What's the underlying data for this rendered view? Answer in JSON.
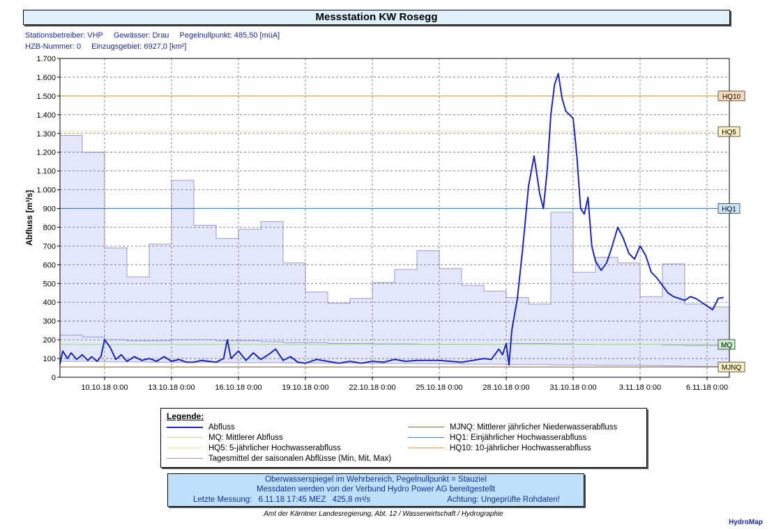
{
  "title": "Messstation KW Rosegg",
  "meta": {
    "line1": [
      "Stationsbetreiber: VHP",
      "Gewässer: Drau",
      "Pegelnullpunkt: 485,50 [müA]"
    ],
    "line2": [
      "HZB-Nummer: 0",
      "Einzugsgebiet: 6927,0 [km²]"
    ]
  },
  "legend": {
    "title": "Legende:",
    "left": [
      {
        "label": "Abfluss",
        "color": "#1a26b8",
        "width": 2
      },
      {
        "label": "MQ: Mittlerer Abfluss",
        "color": "#a8e08a",
        "width": 1
      },
      {
        "label": "HQ5: 5-jährlicher Hochwasserabfluss",
        "color": "#f2e6a0",
        "width": 1
      },
      {
        "label": "Tagesmittel der saisonalen Abflüsse (Min, Mit, Max)",
        "color": "#9a9ad0",
        "width": 1
      }
    ],
    "right": [
      {
        "label": "MJNQ: Mittlerer jährlicher Niederwasserabfluss",
        "color": "#8a6a40",
        "width": 1
      },
      {
        "label": "HQ1: Einjährlicher Hochwasserabfluss",
        "color": "#3a8ac8",
        "width": 1
      },
      {
        "label": "HQ10: 10-jährlicher Hochwasserabfluss",
        "color": "#e0a040",
        "width": 1
      }
    ]
  },
  "info": {
    "line1": "Oberwasserspiegel im Wehrbereich, Pegelnullpunkt = Stauziel",
    "line2": "Messdaten werden von der Verbund Hydro Power AG bereitgestellt",
    "last_label": "Letzte Messung:",
    "last_time": "6.11.18 17:45 MEZ",
    "last_value": "425,8 m³/s",
    "warning": "Achtung: Ungeprüfte Rohdaten!"
  },
  "footer": "Amt der Kärntner Landesregierung, Abt. 12 / Wasserwirtschaft / Hydrographie",
  "brand": "HydroMap",
  "chart_data": {
    "type": "line",
    "title": "",
    "ylabel": "Abfluss [m³/s]",
    "ylim": [
      0,
      1700
    ],
    "xlim": [
      "2018-10-08T00:00",
      "2018-11-07T00:00"
    ],
    "grid": true,
    "yticks": [
      0,
      100,
      200,
      300,
      400,
      500,
      600,
      700,
      800,
      900,
      1000,
      1100,
      1200,
      1300,
      1400,
      1500,
      1600,
      1700
    ],
    "ytick_labels": [
      "0",
      "100",
      "200",
      "300",
      "400",
      "500",
      "600",
      "700",
      "800",
      "900",
      "1.000",
      "1.100",
      "1.200",
      "1.300",
      "1.400",
      "1.500",
      "1.600",
      "1.700"
    ],
    "xticks": [
      "2018-10-10T00:00",
      "2018-10-13T00:00",
      "2018-10-16T00:00",
      "2018-10-19T00:00",
      "2018-10-22T00:00",
      "2018-10-25T00:00",
      "2018-10-28T00:00",
      "2018-10-31T00:00",
      "2018-11-03T00:00",
      "2018-11-06T00:00"
    ],
    "xtick_labels": [
      "10.10.18 0:00",
      "13.10.18 0:00",
      "16.10.18 0:00",
      "19.10.18 0:00",
      "22.10.18 0:00",
      "25.10.18 0:00",
      "28.10.18 0:00",
      "31.10.18 0:00",
      "3.11.18 0:00",
      "6.11.18 0:00"
    ],
    "thresholds": [
      {
        "name": "HQ10",
        "value": 1500,
        "color": "#e0a040",
        "bg": "#fcd8b8"
      },
      {
        "name": "HQ5",
        "value": 1310,
        "color": "#f2e6a0",
        "bg": "#fcf0c0"
      },
      {
        "name": "HQ1",
        "value": 900,
        "color": "#3a8ac8",
        "bg": "#c8e4f8"
      },
      {
        "name": "MQ",
        "value": 175,
        "color": "#a8e08a",
        "bg": "#c8f0c8"
      },
      {
        "name": "MJNQ",
        "value": 55,
        "color": "#8a6a40",
        "bg": "#fcf0c0"
      }
    ],
    "seasonal_days": [
      "2018-10-08",
      "2018-10-09",
      "2018-10-10",
      "2018-10-11",
      "2018-10-12",
      "2018-10-13",
      "2018-10-14",
      "2018-10-15",
      "2018-10-16",
      "2018-10-17",
      "2018-10-18",
      "2018-10-19",
      "2018-10-20",
      "2018-10-21",
      "2018-10-22",
      "2018-10-23",
      "2018-10-24",
      "2018-10-25",
      "2018-10-26",
      "2018-10-27",
      "2018-10-28",
      "2018-10-29",
      "2018-10-30",
      "2018-10-31",
      "2018-11-01",
      "2018-11-02",
      "2018-11-03",
      "2018-11-04",
      "2018-11-05",
      "2018-11-06"
    ],
    "seasonal_max": [
      1290,
      1200,
      690,
      535,
      710,
      1050,
      810,
      740,
      790,
      830,
      610,
      455,
      395,
      420,
      505,
      575,
      675,
      580,
      490,
      460,
      425,
      390,
      880,
      560,
      640,
      610,
      430,
      605,
      390,
      375
    ],
    "seasonal_mid": [
      225,
      215,
      200,
      195,
      195,
      200,
      200,
      195,
      195,
      190,
      185,
      185,
      180,
      180,
      178,
      178,
      176,
      176,
      176,
      175,
      180,
      180,
      178,
      176,
      175,
      175,
      175,
      172,
      170,
      170
    ],
    "seasonal_min": [
      85,
      85,
      82,
      82,
      80,
      80,
      80,
      78,
      78,
      78,
      76,
      76,
      75,
      75,
      74,
      74,
      72,
      72,
      70,
      70,
      68,
      68,
      66,
      66,
      64,
      64,
      62,
      60,
      58,
      58
    ],
    "series": [
      {
        "name": "Abfluss",
        "x": [
          "2018-10-08T00:00",
          "2018-10-08T03:00",
          "2018-10-08T08:00",
          "2018-10-08T12:00",
          "2018-10-08T18:00",
          "2018-10-09T00:00",
          "2018-10-09T06:00",
          "2018-10-09T10:00",
          "2018-10-09T16:00",
          "2018-10-09T20:00",
          "2018-10-10T00:00",
          "2018-10-10T06:00",
          "2018-10-10T12:00",
          "2018-10-10T18:00",
          "2018-10-11T00:00",
          "2018-10-11T08:00",
          "2018-10-11T16:00",
          "2018-10-12T00:00",
          "2018-10-12T08:00",
          "2018-10-12T16:00",
          "2018-10-13T00:00",
          "2018-10-13T08:00",
          "2018-10-13T16:00",
          "2018-10-14T00:00",
          "2018-10-14T08:00",
          "2018-10-14T16:00",
          "2018-10-15T00:00",
          "2018-10-15T08:00",
          "2018-10-15T12:00",
          "2018-10-15T16:00",
          "2018-10-16T00:00",
          "2018-10-16T08:00",
          "2018-10-16T16:00",
          "2018-10-17T00:00",
          "2018-10-17T08:00",
          "2018-10-17T16:00",
          "2018-10-18T00:00",
          "2018-10-18T08:00",
          "2018-10-18T16:00",
          "2018-10-19T00:00",
          "2018-10-19T12:00",
          "2018-10-20T00:00",
          "2018-10-20T12:00",
          "2018-10-21T00:00",
          "2018-10-21T12:00",
          "2018-10-22T00:00",
          "2018-10-22T12:00",
          "2018-10-23T00:00",
          "2018-10-23T12:00",
          "2018-10-24T00:00",
          "2018-10-24T12:00",
          "2018-10-25T00:00",
          "2018-10-25T12:00",
          "2018-10-26T00:00",
          "2018-10-26T12:00",
          "2018-10-27T00:00",
          "2018-10-27T08:00",
          "2018-10-27T16:00",
          "2018-10-27T20:00",
          "2018-10-28T00:00",
          "2018-10-28T03:00",
          "2018-10-28T06:00",
          "2018-10-28T12:00",
          "2018-10-28T18:00",
          "2018-10-29T00:00",
          "2018-10-29T06:00",
          "2018-10-29T12:00",
          "2018-10-29T16:00",
          "2018-10-29T20:00",
          "2018-10-30T00:00",
          "2018-10-30T04:00",
          "2018-10-30T08:00",
          "2018-10-30T12:00",
          "2018-10-30T16:00",
          "2018-10-30T20:00",
          "2018-10-31T00:00",
          "2018-10-31T04:00",
          "2018-10-31T08:00",
          "2018-10-31T12:00",
          "2018-10-31T16:00",
          "2018-10-31T20:00",
          "2018-11-01T00:00",
          "2018-11-01T06:00",
          "2018-11-01T12:00",
          "2018-11-01T18:00",
          "2018-11-02T00:00",
          "2018-11-02T06:00",
          "2018-11-02T12:00",
          "2018-11-02T18:00",
          "2018-11-03T00:00",
          "2018-11-03T06:00",
          "2018-11-03T12:00",
          "2018-11-03T18:00",
          "2018-11-04T00:00",
          "2018-11-04T06:00",
          "2018-11-04T12:00",
          "2018-11-04T18:00",
          "2018-11-05T00:00",
          "2018-11-05T06:00",
          "2018-11-05T12:00",
          "2018-11-05T18:00",
          "2018-11-06T00:00",
          "2018-11-06T06:00",
          "2018-11-06T12:00",
          "2018-11-06T17:45"
        ],
        "values": [
          70,
          140,
          100,
          130,
          95,
          120,
          90,
          110,
          85,
          110,
          200,
          160,
          95,
          120,
          85,
          110,
          90,
          100,
          85,
          110,
          85,
          95,
          80,
          80,
          90,
          85,
          80,
          100,
          200,
          100,
          140,
          90,
          130,
          95,
          120,
          150,
          90,
          110,
          80,
          75,
          95,
          85,
          75,
          85,
          75,
          85,
          80,
          95,
          85,
          90,
          90,
          90,
          85,
          80,
          90,
          100,
          95,
          150,
          120,
          180,
          65,
          250,
          420,
          700,
          1020,
          1180,
          980,
          900,
          1100,
          1400,
          1560,
          1620,
          1490,
          1420,
          1400,
          1380,
          1180,
          900,
          870,
          960,
          700,
          620,
          570,
          610,
          700,
          800,
          740,
          660,
          630,
          700,
          650,
          560,
          530,
          490,
          450,
          430,
          420,
          410,
          430,
          420,
          400,
          380,
          360,
          420,
          425.8
        ]
      }
    ]
  }
}
